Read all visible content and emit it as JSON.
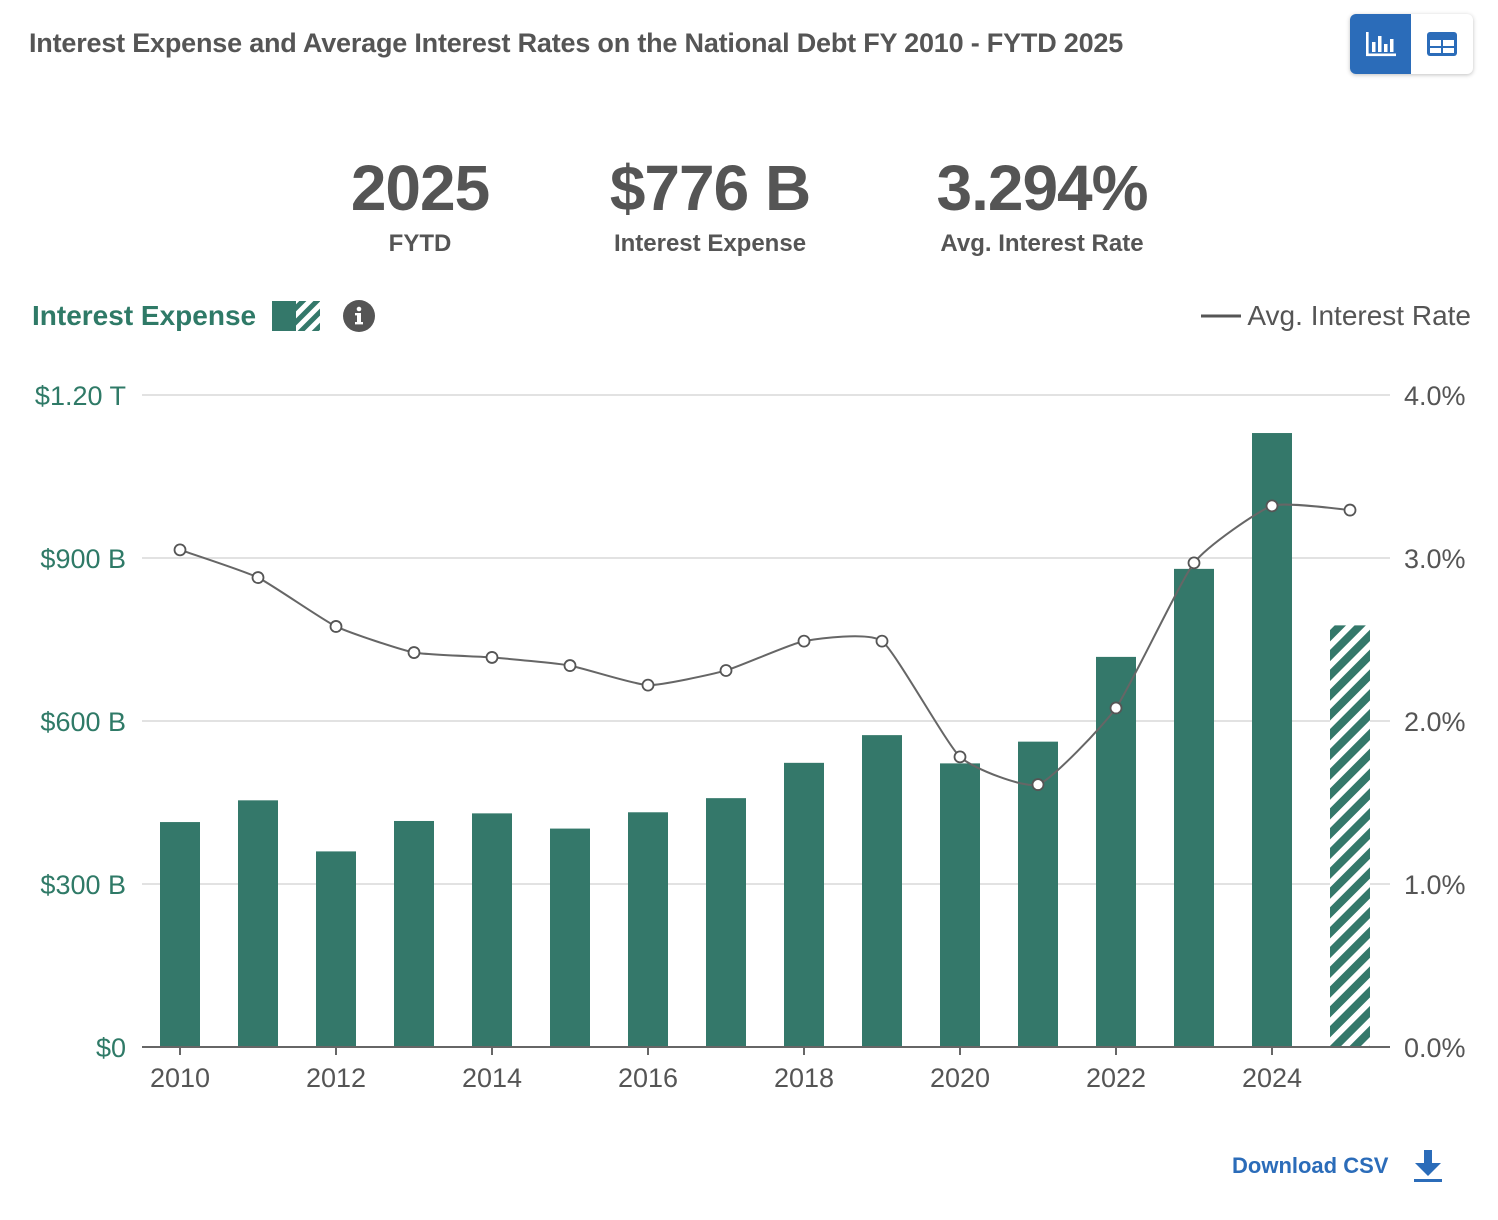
{
  "title": "Interest Expense and Average Interest Rates on the National Debt FY 2010 - FYTD 2025",
  "view_toggle": {
    "chart_icon": "bar-chart-icon",
    "table_icon": "table-icon",
    "active": "chart"
  },
  "stats": {
    "year": {
      "value": "2025",
      "label": "FYTD"
    },
    "expense": {
      "value": "$776 B",
      "label": "Interest Expense"
    },
    "rate": {
      "value": "3.294%",
      "label": "Avg. Interest Rate"
    }
  },
  "legend": {
    "left_label": "Interest Expense",
    "right_label": "Avg. Interest Rate"
  },
  "download_label": "Download CSV",
  "colors": {
    "bar": "#34786a",
    "accent_green": "#2f7a67",
    "line": "#666666",
    "blue": "#2b6cb9"
  },
  "chart_data": {
    "type": "bar",
    "title": "Interest Expense and Average Interest Rates on the National Debt FY 2010 - FYTD 2025",
    "categories": [
      "2010",
      "2011",
      "2012",
      "2013",
      "2014",
      "2015",
      "2016",
      "2017",
      "2018",
      "2019",
      "2020",
      "2021",
      "2022",
      "2023",
      "2024",
      "2025"
    ],
    "x_tick_labels": [
      "2010",
      "2012",
      "2014",
      "2016",
      "2018",
      "2020",
      "2022",
      "2024"
    ],
    "series": [
      {
        "name": "Interest Expense",
        "axis": "left",
        "unit": "B",
        "values": [
          414,
          454,
          360,
          416,
          430,
          402,
          432,
          458,
          523,
          574,
          522,
          562,
          718,
          880,
          1130,
          776
        ],
        "partial_last": true
      },
      {
        "name": "Avg. Interest Rate",
        "axis": "right",
        "type": "line",
        "unit": "%",
        "values": [
          3.05,
          2.88,
          2.58,
          2.42,
          2.39,
          2.34,
          2.22,
          2.31,
          2.49,
          2.49,
          1.78,
          1.61,
          2.08,
          2.97,
          3.32,
          3.294
        ]
      }
    ],
    "y_left": {
      "ylim": [
        0,
        1200
      ],
      "ticks": [
        0,
        300,
        600,
        900,
        1200
      ],
      "tick_labels": [
        "$0",
        "$300 B",
        "$600 B",
        "$900 B",
        "$1.20 T"
      ]
    },
    "y_right": {
      "ylim": [
        0,
        4
      ],
      "ticks": [
        0,
        1,
        2,
        3,
        4
      ],
      "tick_labels": [
        "0.0%",
        "1.0%",
        "2.0%",
        "3.0%",
        "4.0%"
      ]
    },
    "grid": true
  }
}
